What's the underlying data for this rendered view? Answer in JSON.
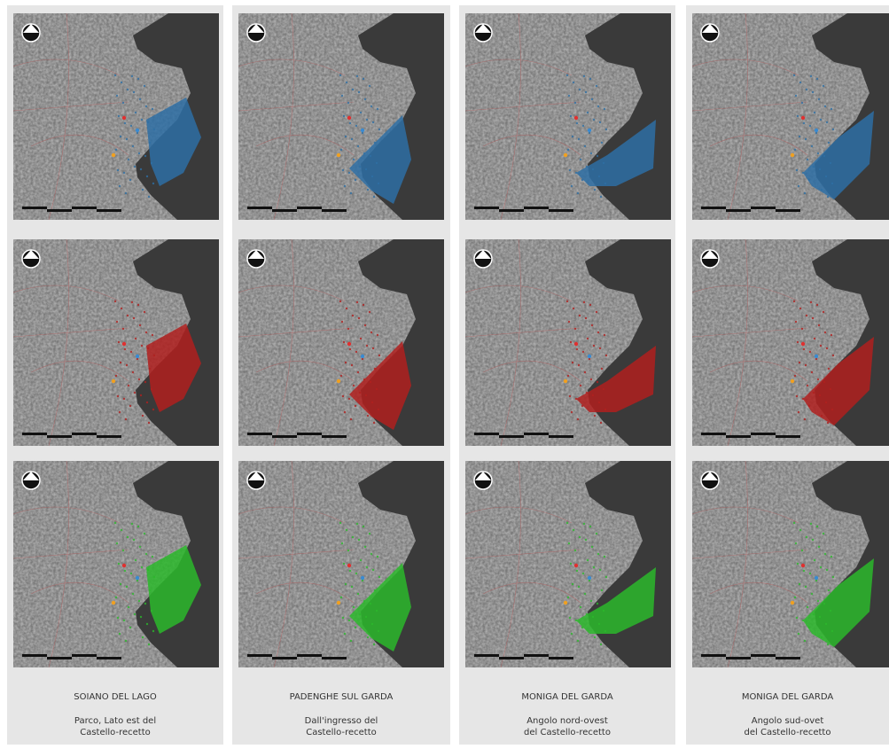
{
  "columns": [
    {
      "title": "SOIANO DEL LAGO",
      "lines": [
        "Parco, Lato est del",
        "Castello-recetto"
      ]
    },
    {
      "title": "PADENGHE SUL GARDA",
      "lines": [
        "Dall'ingresso del",
        "Castello-recetto"
      ]
    },
    {
      "title": "MONIGA DEL GARDA",
      "lines": [
        "Angolo nord-ovest",
        "del Castello-recetto"
      ]
    },
    {
      "title": "MONIGA DEL GARDA",
      "lines": [
        "Angolo sud-ovet",
        "del Castello-recetto"
      ]
    }
  ]
}
